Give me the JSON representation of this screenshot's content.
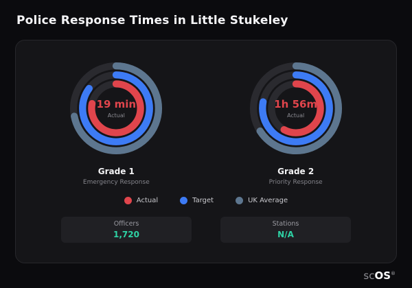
{
  "page": {
    "title": "Police Response Times in Little Stukeley"
  },
  "colors": {
    "actual": "#e0454c",
    "target": "#3d7bf5",
    "uk_average": "#5d768f",
    "ring_track": "#2a2a2f",
    "stat_value_accent": "#2ed3a5",
    "card_bg": "#151518",
    "page_bg": "#0b0b0e"
  },
  "chart_data": [
    {
      "type": "pie",
      "variant": "concentric-radial-gauge",
      "title": "Grade 1",
      "subtitle": "Emergency Response",
      "center_value": "19 min",
      "center_label": "Actual",
      "legend_position": "bottom",
      "series": [
        {
          "name": "UK Average",
          "fraction": 0.72,
          "color": "#5d768f"
        },
        {
          "name": "Target",
          "fraction": 0.85,
          "color": "#3d7bf5"
        },
        {
          "name": "Actual",
          "fraction": 0.78,
          "color": "#e0454c"
        }
      ]
    },
    {
      "type": "pie",
      "variant": "concentric-radial-gauge",
      "title": "Grade 2",
      "subtitle": "Priority Response",
      "center_value": "1h 56m",
      "center_label": "Actual",
      "legend_position": "bottom",
      "series": [
        {
          "name": "UK Average",
          "fraction": 0.66,
          "color": "#5d768f"
        },
        {
          "name": "Target",
          "fraction": 0.78,
          "color": "#3d7bf5"
        },
        {
          "name": "Actual",
          "fraction": 0.58,
          "color": "#e0454c"
        }
      ]
    }
  ],
  "legend": {
    "items": [
      {
        "label": "Actual",
        "color": "#e0454c"
      },
      {
        "label": "Target",
        "color": "#3d7bf5"
      },
      {
        "label": "UK Average",
        "color": "#5d768f"
      }
    ]
  },
  "stats": [
    {
      "label": "Officers",
      "value": "1,720"
    },
    {
      "label": "Stations",
      "value": "N/A"
    }
  ],
  "brand": {
    "prefix": "sc",
    "suffix": "OS",
    "mark": "®"
  }
}
